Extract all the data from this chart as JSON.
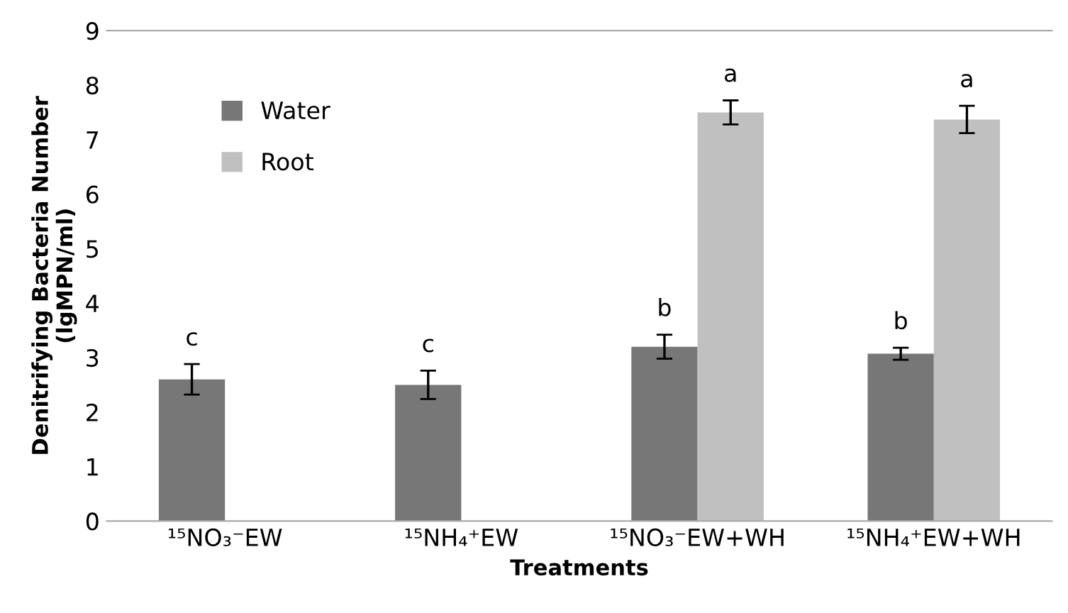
{
  "chart_data": {
    "type": "bar",
    "xlabel": "Treatments",
    "ylabel": "Denitrifying Bacteria Number\n(lgMPN/ml)",
    "categories": [
      "¹⁵NO₃⁻EW",
      "¹⁵NH₄⁺EW",
      "¹⁵NO₃⁻EW+WH",
      "¹⁵NH₄⁺EW+WH"
    ],
    "series": [
      {
        "name": "Water",
        "color": "#777777",
        "values": [
          2.6,
          2.5,
          3.2,
          3.07
        ],
        "errors": [
          0.28,
          0.26,
          0.22,
          0.11
        ]
      },
      {
        "name": "Root",
        "color": "#c0c0c0",
        "values": [
          0,
          0,
          7.5,
          7.37
        ],
        "errors": [
          null,
          null,
          0.22,
          0.25
        ]
      }
    ],
    "annotations": [
      "c",
      "c",
      "b",
      "a",
      "b",
      "a"
    ],
    "ylim": [
      0,
      9
    ],
    "yticks": [
      0,
      1,
      2,
      3,
      4,
      5,
      6,
      7,
      8,
      9
    ],
    "grid": false,
    "legend": "top left"
  }
}
